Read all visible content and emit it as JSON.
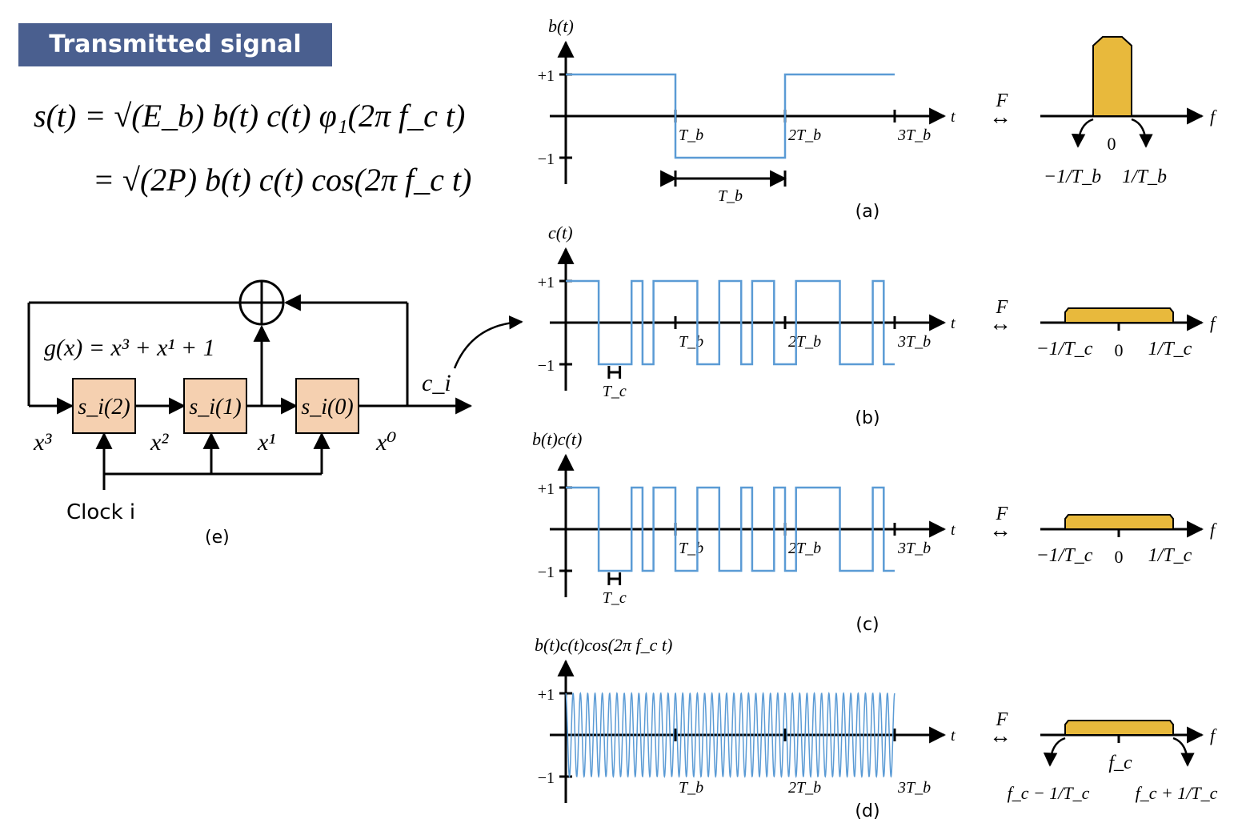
{
  "title": "Transmitted signal",
  "equation": {
    "line1": "s(t) = √(E_b) b(t) c(t) φ₁(2π f_c t)",
    "line2": "= √(2P) b(t) c(t) cos(2π f_c t)"
  },
  "panels": {
    "a": {
      "label": "(a)",
      "ylabel": "b(t)",
      "yplus": "+1",
      "yminus": "−1",
      "xvar": "t",
      "ticks": [
        "T_b",
        "2T_b",
        "3T_b"
      ],
      "span_label": "T_b",
      "transform": "F",
      "fvar": "f",
      "spec_zero": "0",
      "spec_left": "−1/T_b",
      "spec_right": "1/T_b"
    },
    "b": {
      "label": "(b)",
      "ylabel": "c(t)",
      "yplus": "+1",
      "yminus": "−1",
      "xvar": "t",
      "ticks": [
        "T_b",
        "2T_b",
        "3T_b"
      ],
      "span_label": "T_c",
      "transform": "F",
      "fvar": "f",
      "spec_zero": "0",
      "spec_left": "−1/T_c",
      "spec_right": "1/T_c"
    },
    "c": {
      "label": "(c)",
      "ylabel": "b(t)c(t)",
      "yplus": "+1",
      "yminus": "−1",
      "xvar": "t",
      "ticks": [
        "T_b",
        "2T_b",
        "3T_b"
      ],
      "span_label": "T_c",
      "transform": "F",
      "fvar": "f",
      "spec_zero": "0",
      "spec_left": "−1/T_c",
      "spec_right": "1/T_c"
    },
    "d": {
      "label": "(d)",
      "ylabel": "b(t)c(t)cos(2π f_c t)",
      "yplus": "+1",
      "yminus": "−1",
      "xvar": "t",
      "ticks": [
        "T_b",
        "2T_b",
        "3T_b"
      ],
      "transform": "F",
      "fvar": "f",
      "spec_center": "f_c",
      "spec_left": "f_c − 1/T_c",
      "spec_right": "f_c + 1/T_c"
    }
  },
  "lfsr": {
    "label": "(e)",
    "polynomial": "g(x) = x³ + x¹ + 1",
    "registers": [
      "s_i(2)",
      "s_i(1)",
      "s_i(0)"
    ],
    "taps": [
      "x³",
      "x²",
      "x¹",
      "x⁰"
    ],
    "output": "c_i",
    "clock": "Clock i"
  },
  "signals": {
    "bit_sequence": [
      1,
      -1,
      1
    ],
    "chip_sequence": [
      1,
      1,
      1,
      -1,
      -1,
      -1,
      1,
      -1,
      1,
      1,
      1,
      1,
      -1,
      -1,
      1,
      1,
      -1,
      1,
      1,
      -1,
      -1,
      1,
      1,
      1,
      1,
      -1,
      -1,
      -1,
      1,
      -1
    ],
    "chips_per_bit": 10,
    "carrier_cycles_per_chip": 1.5
  },
  "colors": {
    "waveform": "#5b9bd5",
    "spectrum": "#e8b93c",
    "banner": "#4a5f8f",
    "register": "#f5d0b0"
  }
}
